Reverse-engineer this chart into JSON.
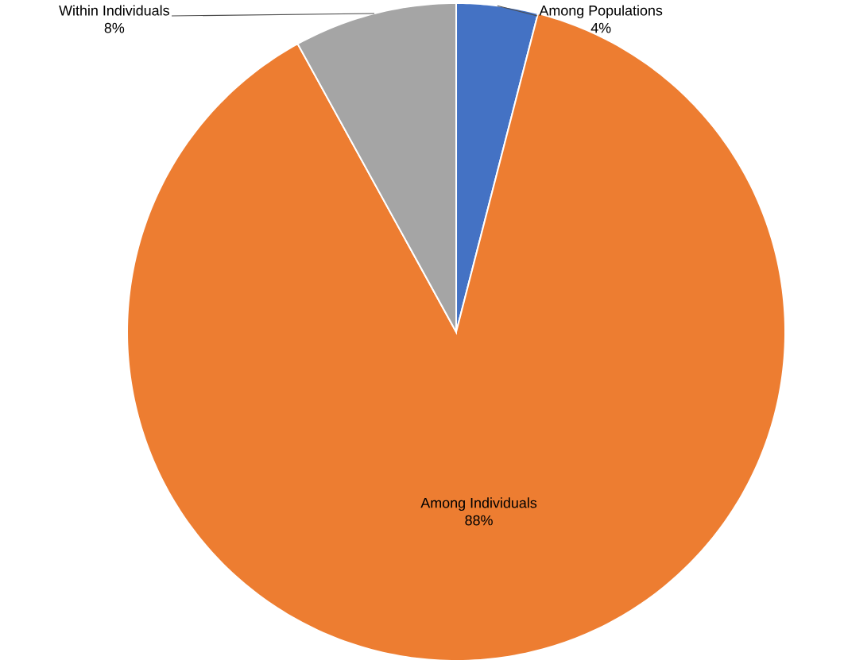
{
  "chart_data": {
    "type": "pie",
    "categories": [
      "Among Populations",
      "Among Individuals",
      "Within Individuals"
    ],
    "values": [
      4,
      88,
      8
    ],
    "colors": [
      "#4472c4",
      "#ed7d31",
      "#a5a5a5"
    ],
    "value_labels": [
      "4%",
      "88%",
      "8%"
    ]
  }
}
